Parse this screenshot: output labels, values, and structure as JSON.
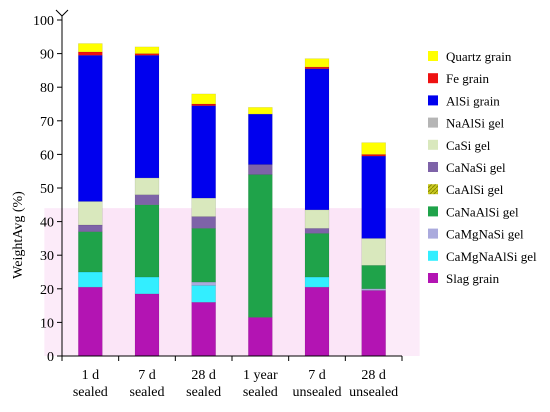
{
  "chart_data": {
    "type": "bar",
    "stacked": true,
    "title": "",
    "xlabel": "",
    "ylabel": "WeightAvg  (%)",
    "ylim": [
      0,
      100
    ],
    "yticks": [
      0,
      10,
      20,
      30,
      40,
      50,
      60,
      70,
      80,
      90,
      100
    ],
    "grid": false,
    "legend_position": "right",
    "categories": [
      [
        "1 d",
        "sealed"
      ],
      [
        "7 d",
        "sealed"
      ],
      [
        "28 d",
        "sealed"
      ],
      [
        "1 year",
        "sealed"
      ],
      [
        "7 d",
        "unsealed"
      ],
      [
        "28 d",
        "unsealed"
      ]
    ],
    "series": [
      {
        "name": "Slag grain",
        "color": "#b314b3",
        "values": [
          20.5,
          18.5,
          16.0,
          11.5,
          20.5,
          19.5
        ]
      },
      {
        "name": "CaMgNaAlSi gel",
        "color": "#33eeff",
        "values": [
          4.5,
          5.0,
          5.0,
          0.0,
          3.0,
          0.0
        ]
      },
      {
        "name": "CaMgNaSi gel",
        "color": "#aaaadd",
        "values": [
          0.0,
          0.0,
          1.0,
          0.0,
          0.0,
          0.5
        ]
      },
      {
        "name": "CaNaAlSi gel",
        "color": "#1fa34a",
        "values": [
          12.0,
          21.5,
          16.0,
          42.5,
          13.0,
          7.0
        ]
      },
      {
        "name": "CaAlSi gel",
        "color": "#a8a820",
        "values": [
          0.0,
          0.0,
          0.0,
          0.0,
          0.0,
          0.0
        ]
      },
      {
        "name": "CaNaSi gel",
        "color": "#7e63a8",
        "values": [
          2.0,
          3.0,
          3.5,
          3.0,
          1.5,
          0.0
        ]
      },
      {
        "name": "CaSi gel",
        "color": "#d9e8bd",
        "values": [
          7.0,
          5.0,
          5.5,
          0.0,
          5.5,
          8.0
        ]
      },
      {
        "name": "NaAlSi gel",
        "color": "#b5b5b5",
        "values": [
          0.0,
          0.0,
          0.0,
          0.0,
          0.0,
          0.0
        ]
      },
      {
        "name": "AlSi grain",
        "color": "#0000ee",
        "values": [
          43.5,
          36.5,
          27.5,
          15.0,
          42.0,
          24.5
        ]
      },
      {
        "name": "Fe grain",
        "color": "#ee1111",
        "values": [
          1.0,
          0.5,
          0.5,
          0.0,
          0.5,
          0.5
        ]
      },
      {
        "name": "Quartz grain",
        "color": "#ffff00",
        "values": [
          2.5,
          2.0,
          3.0,
          2.0,
          2.5,
          3.5
        ]
      }
    ],
    "hatched_series": [
      "CaAlSi gel"
    ],
    "light_pink_bands": true
  },
  "legend": {
    "order": [
      "Quartz grain",
      "Fe grain",
      "AlSi grain",
      "NaAlSi gel",
      "CaSi gel",
      "CaNaSi gel",
      "CaAlSi gel",
      "CaNaAlSi gel",
      "CaMgNaSi gel",
      "CaMgNaAlSi gel",
      "Slag grain"
    ]
  }
}
